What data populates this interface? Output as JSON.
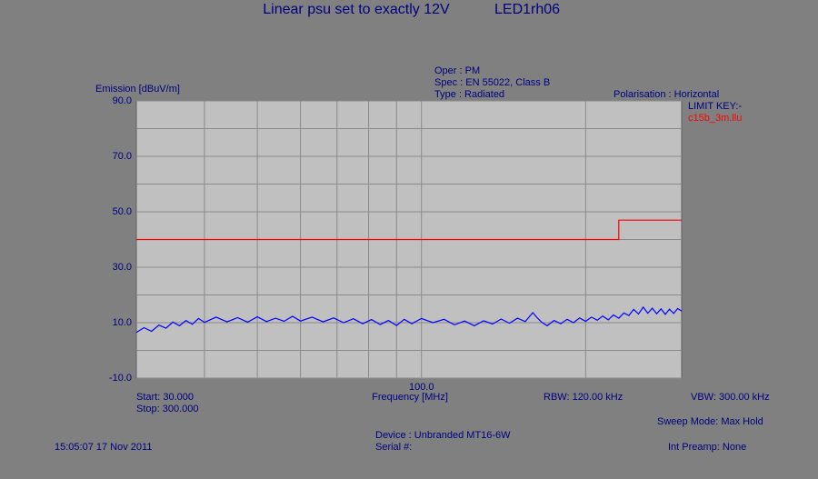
{
  "chart_data": {
    "type": "line",
    "title": "Linear psu set to exactly 12V",
    "subtitle": "LED1rh06",
    "ylabel": "Emission [dBuV/m]",
    "xlabel": "Frequency [MHz]",
    "info": [
      "Oper : PM",
      "Spec : EN 55022, Class B",
      "Type : Radiated",
      "Polarisation : Horizontal",
      "LIMIT KEY:-"
    ],
    "footer": [
      "Start: 30.000",
      "Stop: 300.000",
      "RBW: 120.00 kHz",
      "VBW: 300.00 kHz",
      "Sweep Mode: Max Hold",
      "Device : Unbranded MT16-6W",
      "Serial #:",
      "15:05:07 17 Nov 2011",
      "Int Preamp: None"
    ],
    "xscale": "log",
    "xlim": [
      30,
      300
    ],
    "ylim": [
      -10,
      90
    ],
    "xticks": [
      {
        "value": 100,
        "label": "100.0"
      }
    ],
    "yticks": [
      {
        "value": 90,
        "label": "90.0"
      },
      {
        "value": 70,
        "label": "70.0"
      },
      {
        "value": 50,
        "label": "50.0"
      },
      {
        "value": 30,
        "label": "30.0"
      },
      {
        "value": 10,
        "label": "10.0"
      },
      {
        "value": -10,
        "label": "-10.0"
      }
    ],
    "xgrid": [
      40,
      50,
      60,
      70,
      80,
      90,
      200
    ],
    "ygrid": [
      80,
      60,
      40,
      20,
      0
    ],
    "grid": true,
    "series": [
      {
        "color": "#0000ff",
        "x": [
          30,
          31,
          32,
          33,
          34,
          35,
          36,
          37,
          38,
          39,
          40,
          42,
          44,
          46,
          48,
          50,
          52,
          54,
          56,
          58,
          60,
          63,
          66,
          69,
          72,
          75,
          78,
          81,
          84,
          87,
          90,
          93,
          96,
          100,
          105,
          110,
          115,
          120,
          125,
          130,
          135,
          140,
          145,
          150,
          155,
          160,
          163,
          166,
          170,
          175,
          180,
          185,
          190,
          195,
          200,
          205,
          210,
          215,
          220,
          225,
          230,
          235,
          240,
          245,
          250,
          255,
          260,
          265,
          270,
          275,
          280,
          285,
          290,
          295,
          300
        ],
        "values": [
          6.5,
          8.2,
          6.9,
          9.1,
          8.0,
          10.2,
          8.9,
          10.8,
          9.4,
          11.5,
          10.1,
          12.0,
          10.3,
          11.8,
          10.2,
          12.1,
          10.4,
          11.6,
          10.5,
          12.3,
          10.6,
          12.0,
          10.3,
          11.7,
          10.0,
          11.4,
          9.6,
          11.1,
          9.3,
          10.8,
          9.0,
          11.2,
          9.6,
          11.5,
          10.0,
          11.2,
          9.2,
          10.6,
          8.9,
          10.7,
          9.5,
          11.3,
          9.8,
          11.6,
          10.4,
          13.6,
          11.8,
          10.2,
          8.9,
          10.8,
          9.6,
          11.2,
          10.0,
          11.7,
          10.5,
          12.0,
          10.9,
          12.4,
          11.0,
          12.8,
          11.6,
          13.5,
          12.6,
          14.8,
          13.1,
          15.6,
          13.4,
          15.2,
          13.2,
          15.0,
          13.0,
          14.9,
          13.3,
          15.1,
          14.2
        ]
      },
      {
        "name": "c15b_3m.llu",
        "color": "#ff0000",
        "x": [
          30,
          230,
          230,
          300
        ],
        "values": [
          40,
          40,
          47,
          47
        ]
      }
    ]
  }
}
